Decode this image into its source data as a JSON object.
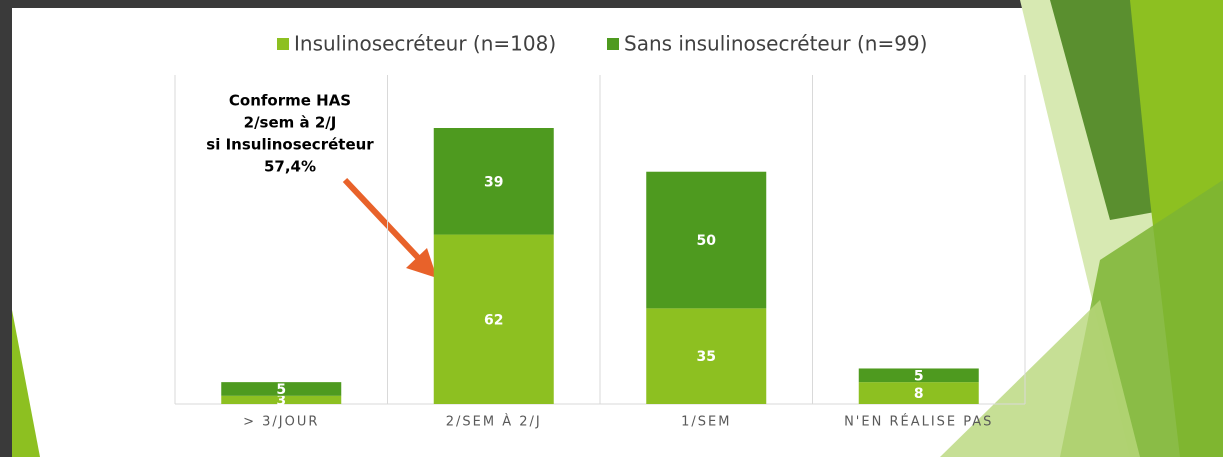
{
  "chart_data": {
    "type": "stacked_bar",
    "categories": [
      "> 3/JOUR",
      "2/SEM À 2/J",
      "1/SEM",
      "N'EN RÉALISE PAS"
    ],
    "series": [
      {
        "name": "Insulinosecréteur (n=108)",
        "color": "#8dc021",
        "values": [
          3,
          62,
          35,
          8
        ]
      },
      {
        "name": "Sans insulinosecréteur (n=99)",
        "color": "#4e9a1f",
        "values": [
          5,
          39,
          50,
          5
        ]
      }
    ],
    "annotation": [
      "Conforme HAS",
      "2/sem à 2/J",
      "si Insulinosecréteur",
      "57,4%"
    ]
  }
}
